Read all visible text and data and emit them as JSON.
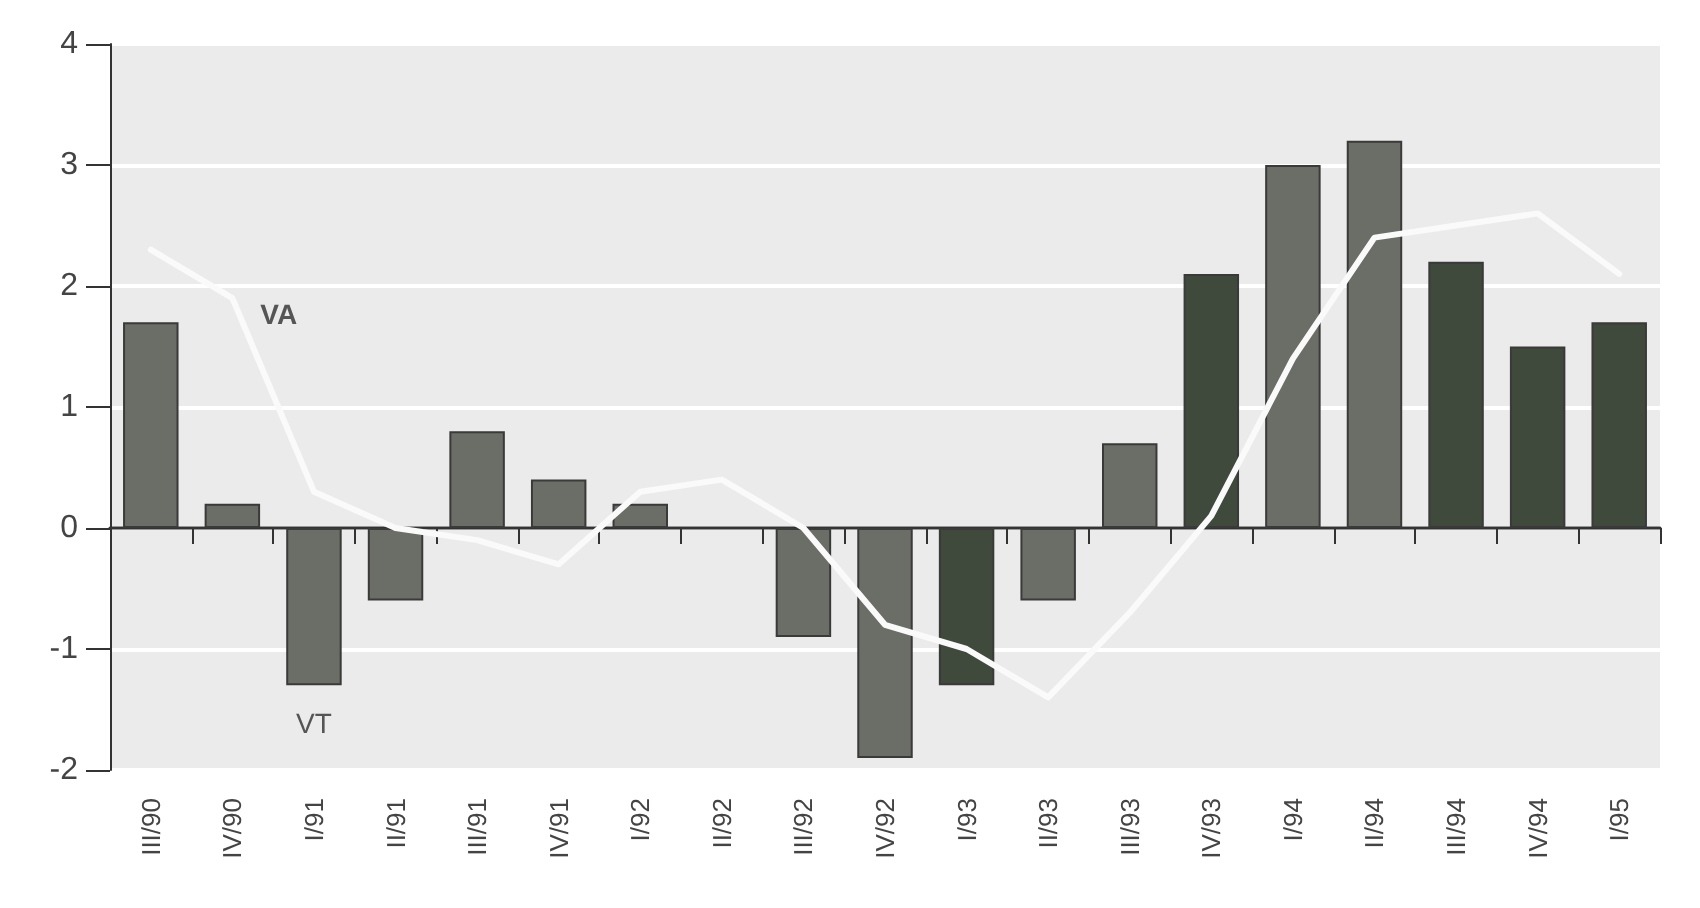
{
  "chart_data": {
    "type": "bar",
    "categories": [
      "III/90",
      "IV/90",
      "I/91",
      "II/91",
      "III/91",
      "IV/91",
      "I/92",
      "II/92",
      "III/92",
      "IV/92",
      "I/93",
      "II/93",
      "III/93",
      "IV/93",
      "I/94",
      "II/94",
      "III/94",
      "IV/94",
      "I/95"
    ],
    "series": [
      {
        "name": "VT",
        "colors": [
          "#6b6e66",
          "#6b6e66",
          "#6b6e66",
          "#6b6e66",
          "#6b6e66",
          "#6b6e66",
          "#6b6e66",
          "#6b6e66",
          "#6b6e66",
          "#6b6e66",
          "#3f4a3c",
          "#6b6e66",
          "#6b6e66",
          "#3f4a3c",
          "#6b6e66",
          "#6b6e66",
          "#3f4a3c",
          "#3f4a3c",
          "#3f4a3c"
        ],
        "values": [
          1.7,
          0.2,
          -1.3,
          -0.6,
          0.8,
          0.4,
          0.2,
          null,
          -0.9,
          -1.9,
          -1.3,
          -0.6,
          0.7,
          2.1,
          3.0,
          3.2,
          2.2,
          1.5,
          1.7
        ]
      },
      {
        "name": "VA",
        "type": "line",
        "color": "#fafafa",
        "values": [
          2.3,
          1.9,
          0.3,
          0.0,
          -0.1,
          -0.3,
          0.3,
          0.4,
          0.0,
          -0.8,
          -1.0,
          -1.4,
          -0.7,
          0.1,
          1.4,
          2.4,
          2.5,
          2.6,
          2.1
        ]
      }
    ],
    "ylim": [
      -2,
      4
    ],
    "yticks": [
      -2,
      -1,
      0,
      1,
      2,
      3,
      4
    ],
    "grid": "y",
    "legend": false,
    "marker": "none",
    "line_style": "solid"
  }
}
